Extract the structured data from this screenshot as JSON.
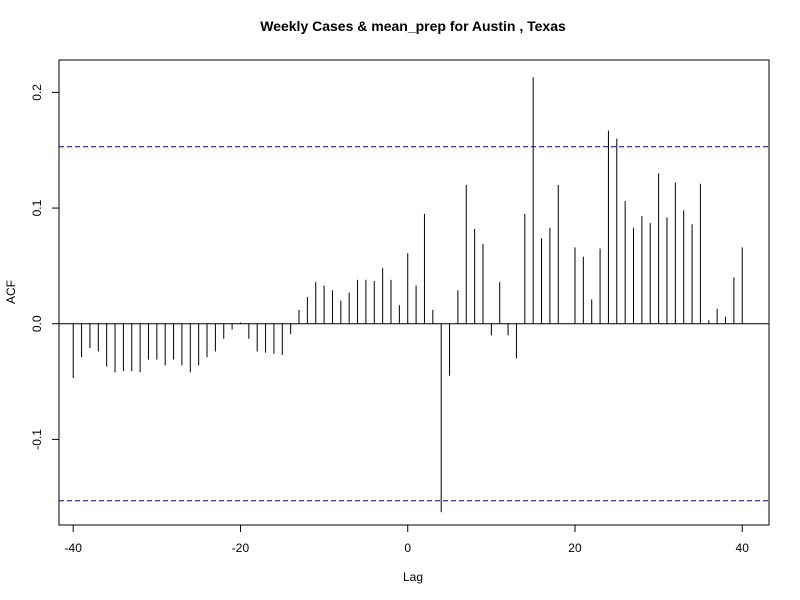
{
  "chart_data": {
    "type": "bar",
    "title": "Weekly Cases & mean_prep for Austin , Texas",
    "xlabel": "Lag",
    "ylabel": "ACF",
    "xlim": [
      -41.7,
      43.2
    ],
    "ylim": [
      -0.174,
      0.228
    ],
    "x_ticks": [
      -40,
      -20,
      0,
      20,
      40
    ],
    "x_tick_labels": [
      "-40",
      "-20",
      "0",
      "20",
      "40"
    ],
    "y_ticks": [
      -0.1,
      0.0,
      0.1,
      0.2
    ],
    "y_tick_labels": [
      "-0.1",
      "0.0",
      "0.1",
      "0.2"
    ],
    "confidence_bound": 0.153,
    "confidence_line_color": "#00008b",
    "bar_color": "#000000",
    "lags": [
      -40,
      -39,
      -38,
      -37,
      -36,
      -35,
      -34,
      -33,
      -32,
      -31,
      -30,
      -29,
      -28,
      -27,
      -26,
      -25,
      -24,
      -23,
      -22,
      -21,
      -20,
      -19,
      -18,
      -17,
      -16,
      -15,
      -14,
      -13,
      -12,
      -11,
      -10,
      -9,
      -8,
      -7,
      -6,
      -5,
      -4,
      -3,
      -2,
      -1,
      0,
      1,
      2,
      3,
      4,
      5,
      6,
      7,
      8,
      9,
      10,
      11,
      12,
      13,
      14,
      15,
      16,
      17,
      18,
      19,
      20,
      21,
      22,
      23,
      24,
      25,
      26,
      27,
      28,
      29,
      30,
      31,
      32,
      33,
      34,
      35,
      36,
      37,
      38,
      39,
      40
    ],
    "values": [
      -0.047,
      -0.029,
      -0.021,
      -0.024,
      -0.037,
      -0.042,
      -0.041,
      -0.041,
      -0.042,
      -0.031,
      -0.031,
      -0.036,
      -0.031,
      -0.036,
      -0.042,
      -0.036,
      -0.029,
      -0.024,
      -0.013,
      -0.005,
      0.001,
      -0.013,
      -0.024,
      -0.025,
      -0.026,
      -0.027,
      -0.009,
      0.012,
      0.023,
      0.036,
      0.033,
      0.029,
      0.02,
      0.027,
      0.038,
      0.038,
      0.037,
      0.048,
      0.038,
      0.016,
      0.061,
      0.033,
      0.095,
      0.012,
      -0.163,
      -0.045,
      0.029,
      0.12,
      0.082,
      0.069,
      -0.01,
      0.036,
      -0.01,
      -0.03,
      0.095,
      0.213,
      0.074,
      0.083,
      0.12,
      0.0,
      0.066,
      0.058,
      0.021,
      0.065,
      0.167,
      0.16,
      0.106,
      0.083,
      0.093,
      0.087,
      0.13,
      0.092,
      0.122,
      0.098,
      0.086,
      0.121,
      0.003,
      0.013,
      0.006,
      0.04,
      0.066
    ]
  }
}
